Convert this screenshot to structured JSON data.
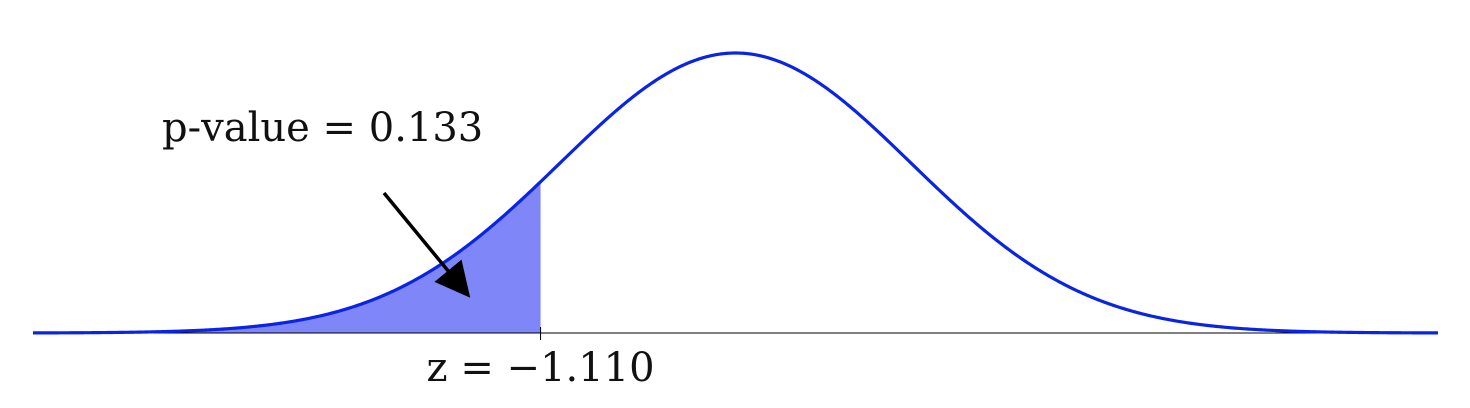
{
  "chart_data": {
    "type": "area",
    "distribution": "standard normal",
    "xlim": [
      -4.0,
      4.0
    ],
    "ylim": [
      0,
      0.4
    ],
    "shaded_region": {
      "from": -4.0,
      "to": -1.11,
      "tail": "left"
    },
    "z_value": -1.11,
    "p_value": 0.133,
    "annotation": {
      "text": "p-value = 0.133",
      "arrow_to": "shaded-region"
    },
    "ticks": [
      {
        "x": -1.11,
        "label": "z = −1.110"
      }
    ],
    "grid": false,
    "colors": {
      "curve": "#0A24E6",
      "fill": "#7E86F8",
      "axis": "#000000",
      "arrow": "#000000"
    }
  }
}
